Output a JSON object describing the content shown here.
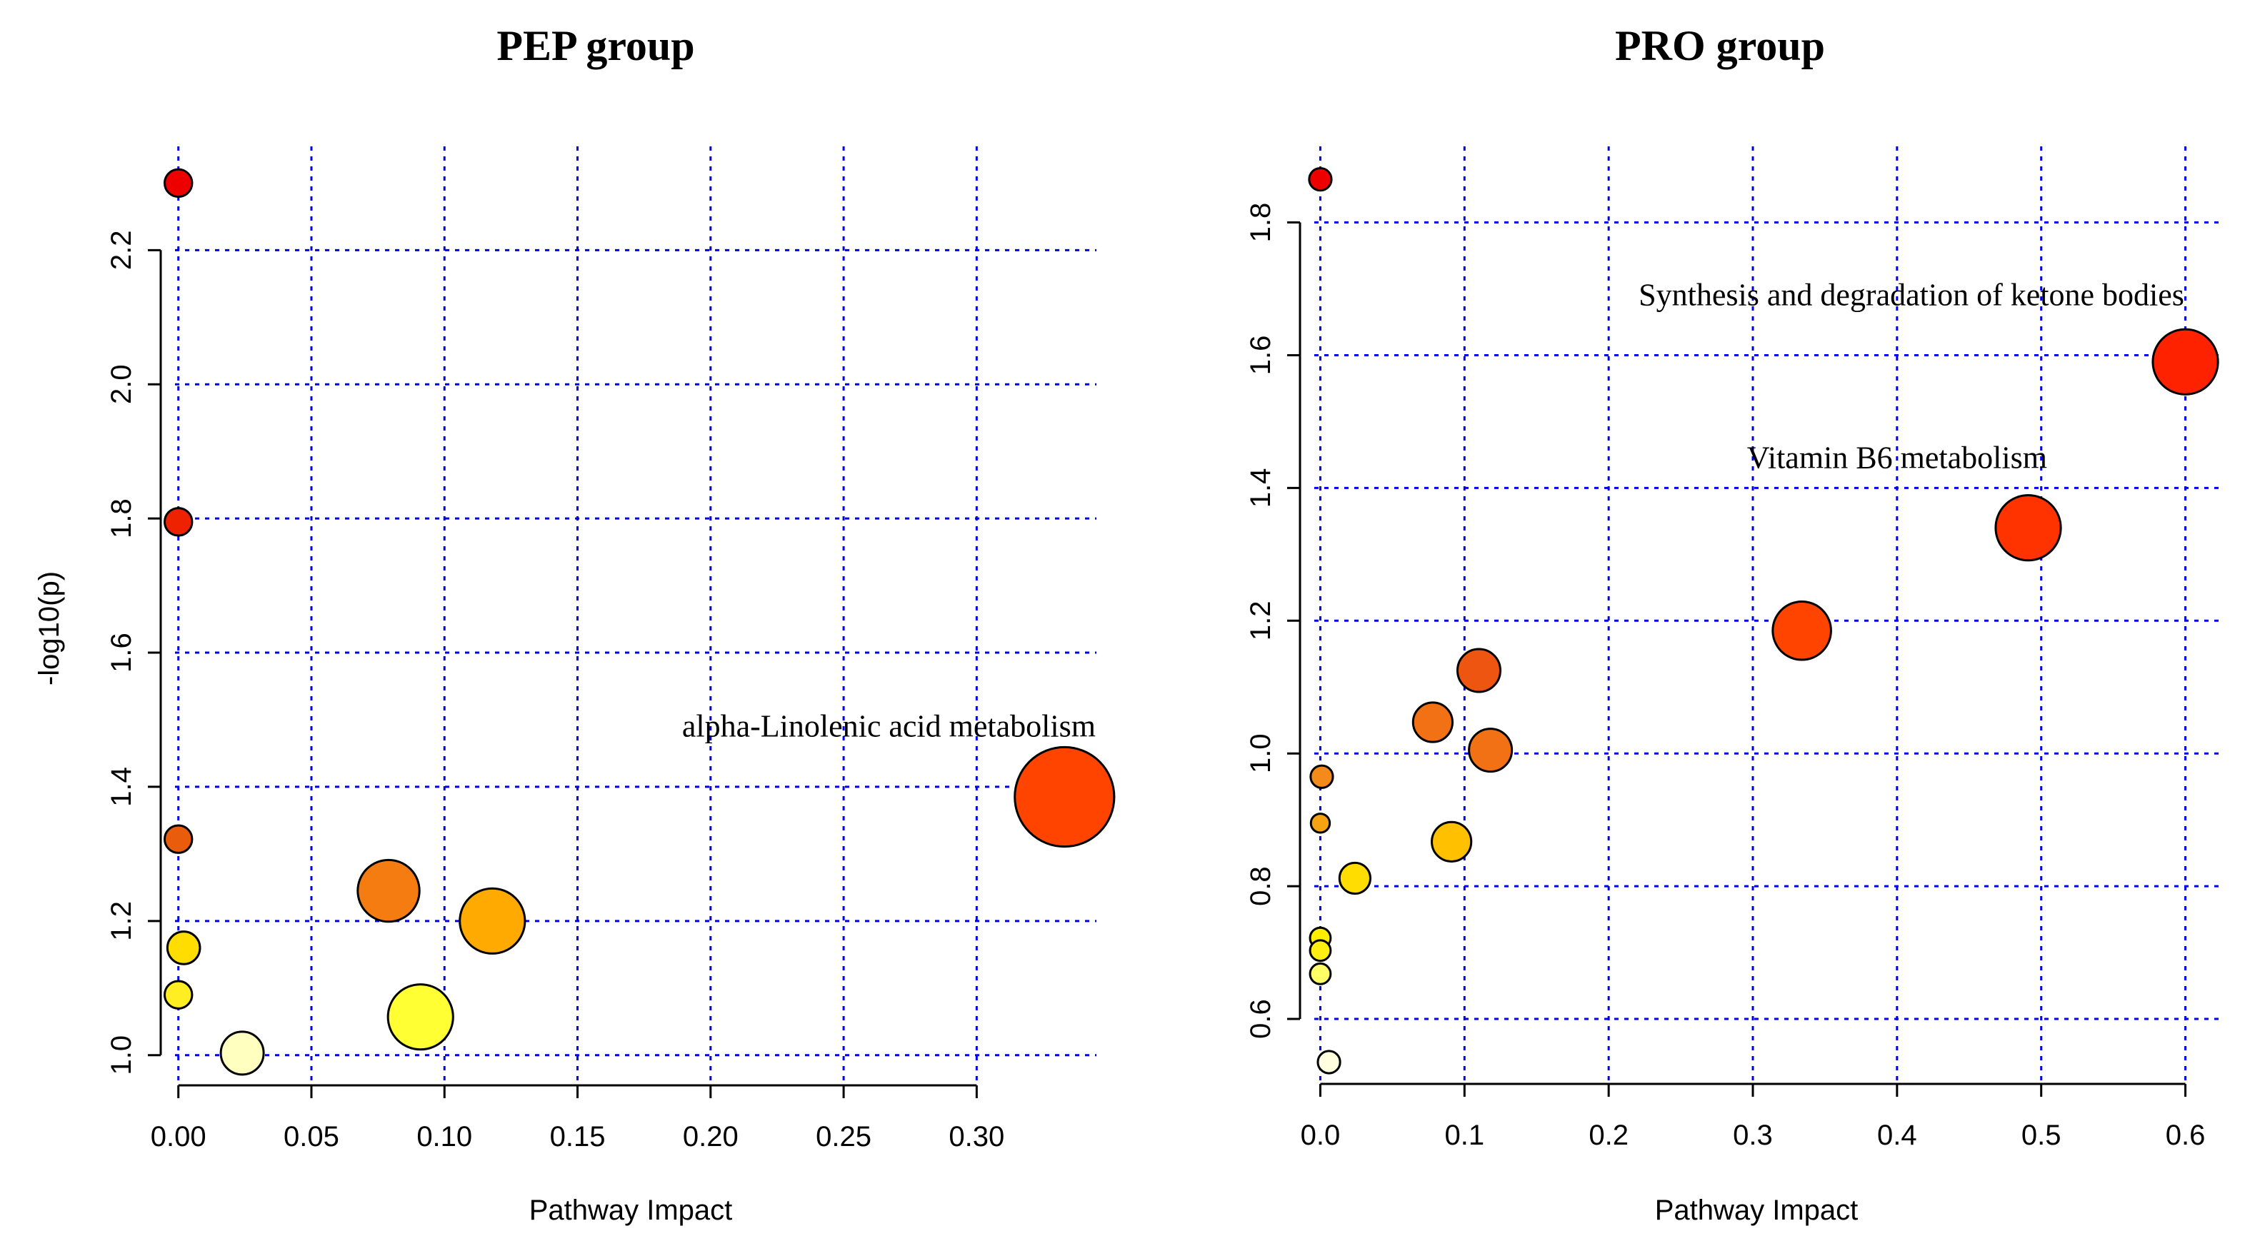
{
  "chart_data": [
    {
      "type": "scatter",
      "title": "PEP group",
      "xlabel": "Pathway Impact",
      "ylabel": "-log10(p)",
      "xticks": [
        "0.00",
        "0.05",
        "0.10",
        "0.15",
        "0.20",
        "0.25",
        "0.30"
      ],
      "xtick_values": [
        0.0,
        0.05,
        0.1,
        0.15,
        0.2,
        0.25,
        0.3
      ],
      "yticks": [
        "1.0",
        "1.2",
        "1.4",
        "1.6",
        "1.8",
        "2.0",
        "2.2"
      ],
      "ytick_values": [
        1.0,
        1.2,
        1.4,
        1.6,
        1.8,
        2.0,
        2.2
      ],
      "xlim": [
        -0.012,
        0.345
      ],
      "ylim": [
        0.955,
        2.36
      ],
      "grid": true,
      "points": [
        {
          "x": 0.0,
          "y": 2.3,
          "r": 0.16,
          "color": "#ee0000"
        },
        {
          "x": 0.0,
          "y": 1.795,
          "r": 0.16,
          "color": "#ee2200"
        },
        {
          "x": 0.0,
          "y": 1.322,
          "r": 0.16,
          "color": "#e85c0c"
        },
        {
          "x": 0.002,
          "y": 1.16,
          "r": 0.19,
          "color": "#ffdd00"
        },
        {
          "x": 0.0,
          "y": 1.09,
          "r": 0.16,
          "color": "#ffee22"
        },
        {
          "x": 0.024,
          "y": 1.003,
          "r": 0.25,
          "color": "#ffffc0"
        },
        {
          "x": 0.079,
          "y": 1.245,
          "r": 0.36,
          "color": "#f47c10"
        },
        {
          "x": 0.091,
          "y": 1.057,
          "r": 0.38,
          "color": "#ffff33"
        },
        {
          "x": 0.118,
          "y": 1.2,
          "r": 0.38,
          "color": "#ffaa00"
        },
        {
          "x": 0.333,
          "y": 1.385,
          "r": 0.58,
          "color": "#ff4400"
        }
      ],
      "annotations": [
        {
          "text": "alpha-Linolenic acid metabolism",
          "x": 0.267,
          "y": 1.475
        }
      ]
    },
    {
      "type": "scatter",
      "title": "PRO group",
      "xlabel": "Pathway Impact",
      "ylabel": "",
      "xticks": [
        "0.0",
        "0.1",
        "0.2",
        "0.3",
        "0.4",
        "0.5",
        "0.6"
      ],
      "xtick_values": [
        0.0,
        0.1,
        0.2,
        0.3,
        0.4,
        0.5,
        0.6
      ],
      "yticks": [
        "0.6",
        "0.8",
        "1.0",
        "1.2",
        "1.4",
        "1.6",
        "1.8"
      ],
      "ytick_values": [
        0.6,
        0.8,
        1.0,
        1.2,
        1.4,
        1.6,
        1.8
      ],
      "xlim": [
        -0.024,
        0.625
      ],
      "ylim": [
        0.5,
        1.92
      ],
      "grid": true,
      "points": [
        {
          "x": 0.0,
          "y": 1.865,
          "r": 0.13,
          "color": "#ee0000"
        },
        {
          "x": 0.6,
          "y": 1.59,
          "r": 0.38,
          "color": "#ff2200"
        },
        {
          "x": 0.491,
          "y": 1.34,
          "r": 0.38,
          "color": "#ff3300"
        },
        {
          "x": 0.334,
          "y": 1.185,
          "r": 0.34,
          "color": "#ff4400"
        },
        {
          "x": 0.11,
          "y": 1.125,
          "r": 0.25,
          "color": "#ee5511"
        },
        {
          "x": 0.078,
          "y": 1.047,
          "r": 0.23,
          "color": "#f27115"
        },
        {
          "x": 0.118,
          "y": 1.005,
          "r": 0.25,
          "color": "#f27115"
        },
        {
          "x": 0.001,
          "y": 0.965,
          "r": 0.13,
          "color": "#f38a1a"
        },
        {
          "x": 0.0,
          "y": 0.895,
          "r": 0.11,
          "color": "#f5a312"
        },
        {
          "x": 0.091,
          "y": 0.867,
          "r": 0.23,
          "color": "#ffc000"
        },
        {
          "x": 0.024,
          "y": 0.812,
          "r": 0.18,
          "color": "#ffdd00"
        },
        {
          "x": 0.0,
          "y": 0.722,
          "r": 0.12,
          "color": "#ffee00"
        },
        {
          "x": 0.0,
          "y": 0.703,
          "r": 0.12,
          "color": "#ffee11"
        },
        {
          "x": 0.0,
          "y": 0.668,
          "r": 0.12,
          "color": "#ffff66"
        },
        {
          "x": 0.006,
          "y": 0.535,
          "r": 0.13,
          "color": "#ffffe0"
        }
      ],
      "annotations": [
        {
          "text": "Synthesis and degradation of ketone bodies",
          "x": 0.41,
          "y": 1.675
        },
        {
          "text": "Vitamin B6 metabolism",
          "x": 0.4,
          "y": 1.43
        }
      ]
    }
  ]
}
